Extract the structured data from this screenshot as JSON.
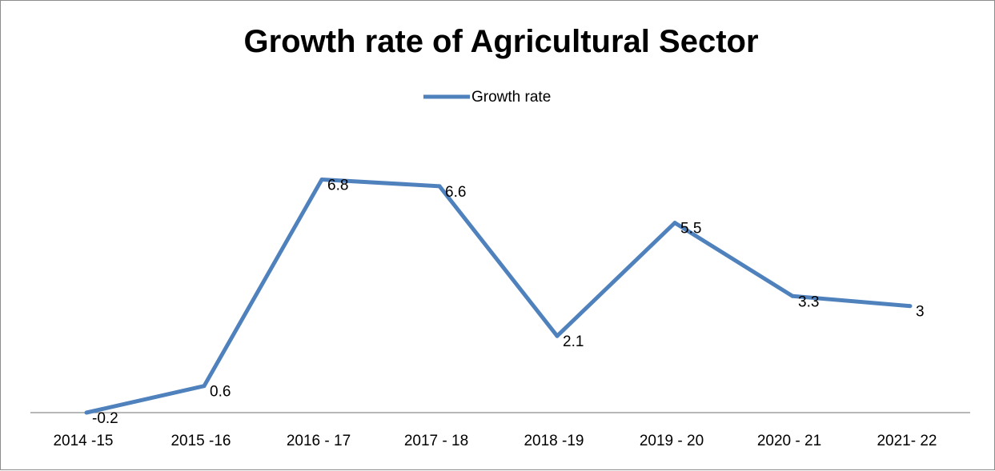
{
  "chart_data": {
    "type": "line",
    "title": "Growth rate of Agricultural Sector",
    "categories": [
      "2014 -15",
      "2015 -16",
      "2016 - 17",
      "2017 - 18",
      "2018 -19",
      "2019 - 20",
      "2020 - 21",
      "2021- 22"
    ],
    "series": [
      {
        "name": "Growth rate",
        "values": [
          -0.2,
          0.6,
          6.8,
          6.6,
          2.1,
          5.5,
          3.3,
          3
        ],
        "labels": [
          "-0.2",
          "0.6",
          "6.8",
          "6.6",
          "2.1",
          "5.5",
          "3.3",
          "3"
        ],
        "color": "#4f81bd"
      }
    ],
    "xlabel": "",
    "ylabel": "",
    "ylim": [
      -0.2,
      8.0
    ],
    "grid": false,
    "legend_position": "top"
  }
}
